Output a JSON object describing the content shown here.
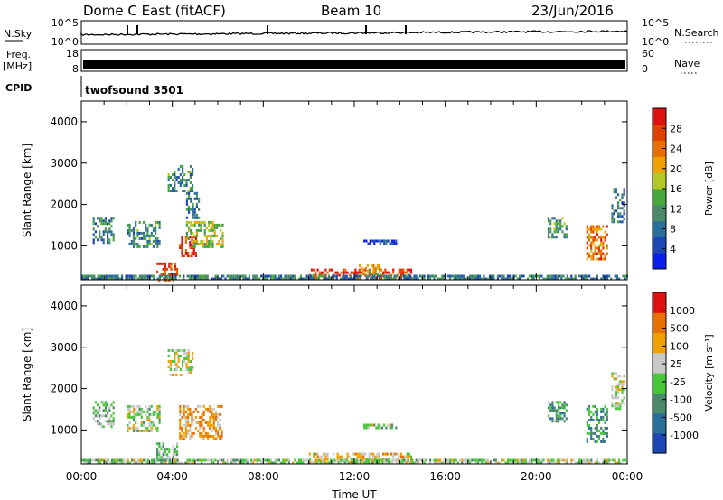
{
  "header": {
    "title": "Dome C East (fitACF)",
    "beam": "Beam 10",
    "date": "23/Jun/2016"
  },
  "nsky_panel": {
    "label": "N.Sky",
    "yticks": [
      "10^5",
      "10^0"
    ],
    "right_label": "N.Search",
    "right_yticks": [
      "10^5",
      "10^0"
    ]
  },
  "freq_panel": {
    "label_line1": "Freq.",
    "label_line2": "[MHz]",
    "yticks": [
      "18",
      "8"
    ],
    "right_label": "Nave",
    "right_yticks": [
      "60",
      "0"
    ]
  },
  "cpid_panel": {
    "label": "CPID",
    "program": "twofsound 3501"
  },
  "x_axis": {
    "label": "Time UT",
    "ticks": [
      "00:00",
      "04:00",
      "08:00",
      "12:00",
      "16:00",
      "20:00",
      "00:00"
    ]
  },
  "chart_data": [
    {
      "type": "heatmap",
      "variable": "Power",
      "ylabel": "Slant Range [km]",
      "xlabel": "",
      "xlim": [
        0,
        24
      ],
      "ylim": [
        180,
        4500
      ],
      "yticks": [
        "4000",
        "3000",
        "2000",
        "1000"
      ],
      "colorbar": {
        "label": "Power [dB]",
        "range": [
          0,
          32
        ],
        "ticks": [
          "28",
          "24",
          "20",
          "16",
          "12",
          "8",
          "4"
        ],
        "colors": [
          "#0a1ef0",
          "#1e46b4",
          "#2a6e9a",
          "#4a8a6a",
          "#46a83a",
          "#b4c828",
          "#f0a000",
          "#e87000",
          "#e04000",
          "#e01010"
        ]
      },
      "echo_regions": [
        {
          "t": [
            0.5,
            1.4
          ],
          "r": [
            1100,
            1700
          ],
          "level": 0.3
        },
        {
          "t": [
            2.0,
            3.4
          ],
          "r": [
            1000,
            1600
          ],
          "level": 0.35
        },
        {
          "t": [
            3.3,
            4.2
          ],
          "r": [
            200,
            600
          ],
          "level": 0.85
        },
        {
          "t": [
            4.3,
            5.0
          ],
          "r": [
            750,
            1250
          ],
          "level": 0.9
        },
        {
          "t": [
            4.6,
            6.2
          ],
          "r": [
            1000,
            1600
          ],
          "level": 0.5
        },
        {
          "t": [
            3.8,
            4.9
          ],
          "r": [
            2300,
            2950
          ],
          "level": 0.35
        },
        {
          "t": [
            4.6,
            5.2
          ],
          "r": [
            1700,
            2300
          ],
          "level": 0.3
        },
        {
          "t": [
            10.0,
            14.5
          ],
          "r": [
            200,
            450
          ],
          "level": 0.9
        },
        {
          "t": [
            12.2,
            13.2
          ],
          "r": [
            300,
            550
          ],
          "level": 0.6
        },
        {
          "t": [
            12.4,
            13.8
          ],
          "r": [
            1050,
            1150
          ],
          "level": 0.15
        },
        {
          "t": [
            20.5,
            21.3
          ],
          "r": [
            1200,
            1700
          ],
          "level": 0.4
        },
        {
          "t": [
            22.2,
            23.1
          ],
          "r": [
            700,
            1500
          ],
          "level": 0.75
        },
        {
          "t": [
            23.3,
            23.9
          ],
          "r": [
            1500,
            2400
          ],
          "level": 0.25
        },
        {
          "t": [
            0.0,
            24.0
          ],
          "r": [
            200,
            300
          ],
          "level": 0.3
        }
      ]
    },
    {
      "type": "heatmap",
      "variable": "Velocity",
      "ylabel": "Slant Range [km]",
      "xlabel": "Time UT",
      "xlim": [
        0,
        24
      ],
      "ylim": [
        180,
        4500
      ],
      "yticks": [
        "4000",
        "3000",
        "2000",
        "1000"
      ],
      "colorbar": {
        "label": "Velocity [m s⁻¹]",
        "ticks": [
          "1000",
          "500",
          "100",
          "25",
          "-25",
          "-100",
          "-500",
          "-1000"
        ],
        "colors": [
          "#1e46b4",
          "#2a6e9a",
          "#4a8a6a",
          "#46c83a",
          "#c8c8c8",
          "#f0a000",
          "#e87000",
          "#e01010"
        ]
      },
      "echo_regions": [
        {
          "t": [
            0.5,
            1.4
          ],
          "r": [
            1100,
            1700
          ],
          "level": 0.45
        },
        {
          "t": [
            2.0,
            3.4
          ],
          "r": [
            1000,
            1600
          ],
          "level": 0.5
        },
        {
          "t": [
            3.3,
            4.2
          ],
          "r": [
            200,
            700
          ],
          "level": 0.4
        },
        {
          "t": [
            4.3,
            6.2
          ],
          "r": [
            800,
            1600
          ],
          "level": 0.7
        },
        {
          "t": [
            3.8,
            4.9
          ],
          "r": [
            2300,
            2950
          ],
          "level": 0.55
        },
        {
          "t": [
            10.0,
            14.5
          ],
          "r": [
            200,
            450
          ],
          "level": 0.65
        },
        {
          "t": [
            12.4,
            13.8
          ],
          "r": [
            1050,
            1150
          ],
          "level": 0.5
        },
        {
          "t": [
            20.5,
            21.3
          ],
          "r": [
            1200,
            1700
          ],
          "level": 0.35
        },
        {
          "t": [
            22.2,
            23.1
          ],
          "r": [
            700,
            1600
          ],
          "level": 0.3
        },
        {
          "t": [
            23.3,
            23.9
          ],
          "r": [
            1500,
            2400
          ],
          "level": 0.55
        },
        {
          "t": [
            0.0,
            24.0
          ],
          "r": [
            200,
            300
          ],
          "level": 0.5
        }
      ]
    }
  ]
}
